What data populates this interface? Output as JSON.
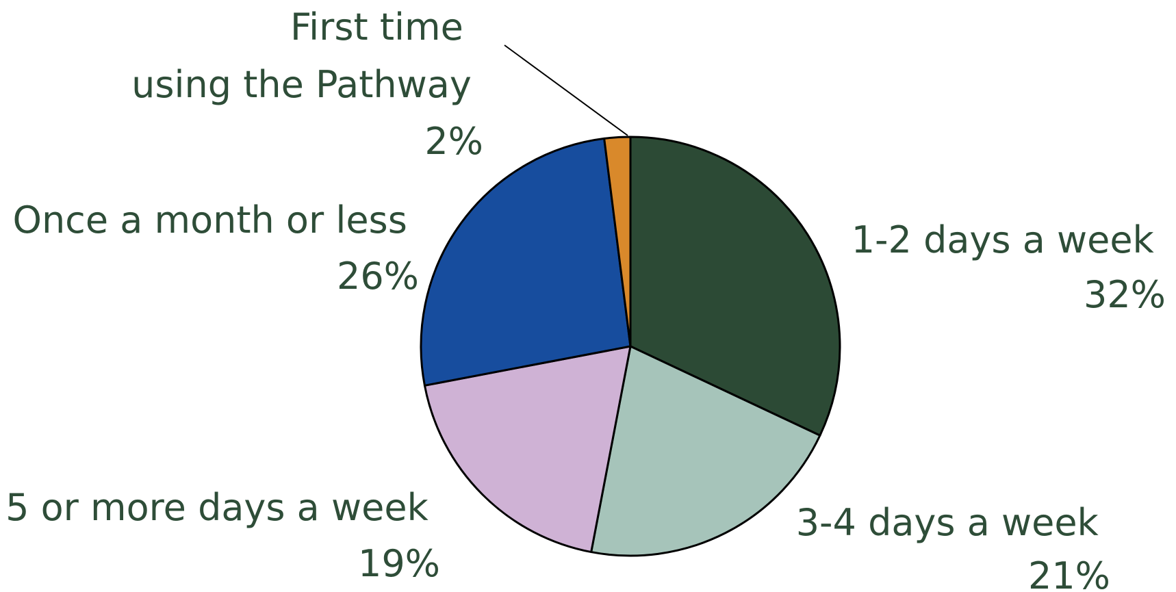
{
  "chart_data": {
    "type": "pie",
    "title": "",
    "start_angle_deg": 0,
    "direction": "clockwise",
    "slices": [
      {
        "label": "1-2 days a week",
        "value": 32,
        "value_label": "32%",
        "color": "#2c4a35"
      },
      {
        "label": "3-4 days a week",
        "value": 21,
        "value_label": "21%",
        "color": "#a6c4ba"
      },
      {
        "label": "5 or more days a week",
        "value": 19,
        "value_label": "19%",
        "color": "#cfb2d5"
      },
      {
        "label": "Once a month or less",
        "value": 26,
        "value_label": "26%",
        "color": "#174d9e"
      },
      {
        "label_lines": [
          "First time",
          "using the Pathway"
        ],
        "value": 2,
        "value_label": "2%",
        "color": "#d9892b"
      }
    ],
    "label_color": "#2e4d38",
    "slice_border_color": "#000000"
  }
}
